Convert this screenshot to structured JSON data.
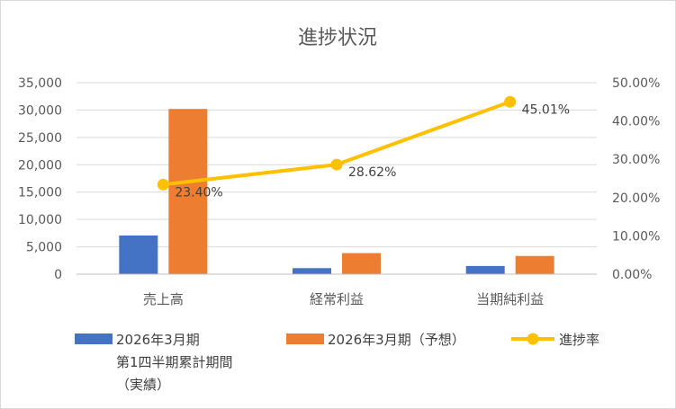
{
  "chart_data": {
    "type": "bar",
    "title": "進捗状況",
    "categories": [
      "売上高",
      "経常利益",
      "当期純利益"
    ],
    "series": [
      {
        "name": "2026年3月期 第1四半期累計期間（実績）",
        "name_lines": [
          "2026年3月期",
          "第1四半期累計期間",
          "（実績）"
        ],
        "type": "bar",
        "axis": "left",
        "color": "#4472C4",
        "values": [
          7070,
          1100,
          1500
        ]
      },
      {
        "name": "2026年3月期（予想）",
        "type": "bar",
        "axis": "left",
        "color": "#ED7D31",
        "values": [
          30200,
          3850,
          3330
        ]
      },
      {
        "name": "進捗率",
        "type": "line",
        "axis": "right",
        "color": "#FFC000",
        "values": [
          23.4,
          28.62,
          45.01
        ],
        "labels": [
          "23.40%",
          "28.62%",
          "45.01%"
        ]
      }
    ],
    "y_left": {
      "min": 0,
      "max": 35000,
      "ticks": [
        "0",
        "5,000",
        "10,000",
        "15,000",
        "20,000",
        "25,000",
        "30,000",
        "35,000"
      ]
    },
    "y_right": {
      "min": 0,
      "max": 50,
      "ticks": [
        "0.00%",
        "10.00%",
        "20.00%",
        "30.00%",
        "40.00%",
        "50.00%"
      ]
    },
    "grid": true,
    "legend_position": "bottom"
  }
}
